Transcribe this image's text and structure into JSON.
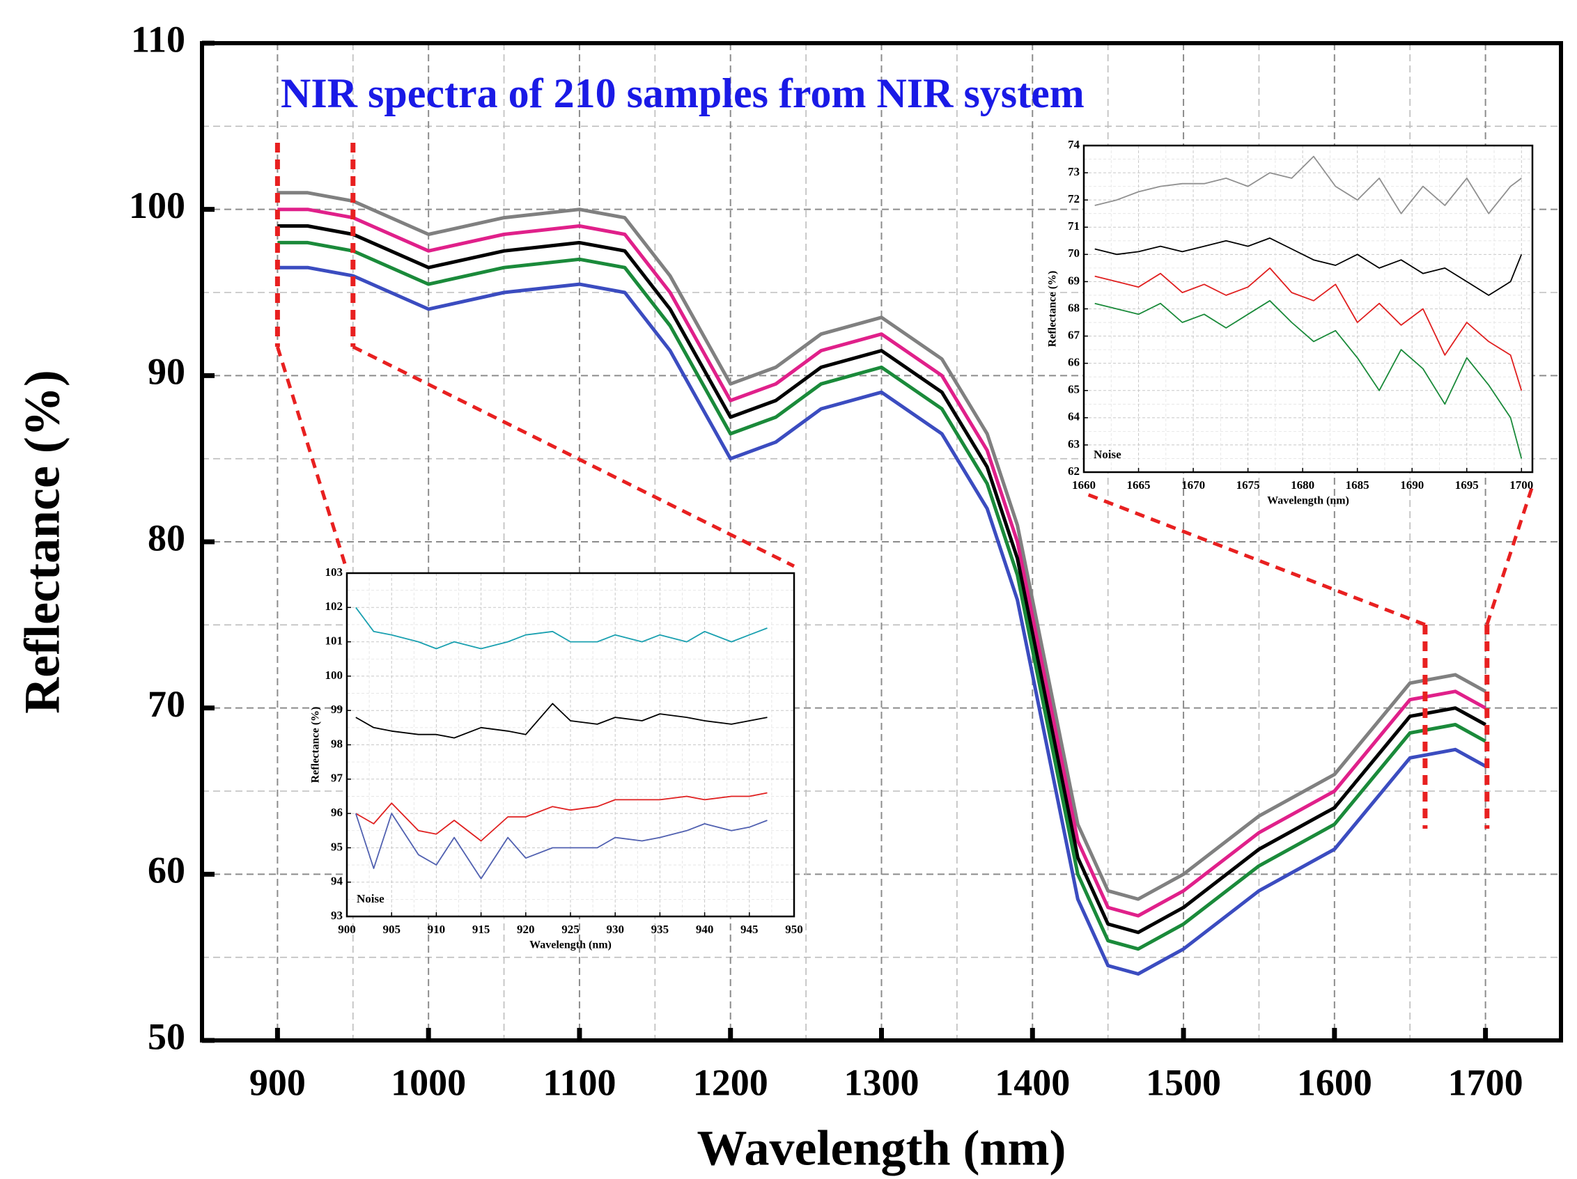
{
  "chart_data": [
    {
      "type": "line",
      "title": "NIR spectra of 210 samples from NIR system",
      "x_label": "Wavelength (nm)",
      "y_label": "Reflectance (%)",
      "xlim": [
        850,
        1750
      ],
      "xticks": [
        900,
        1000,
        1100,
        1200,
        1300,
        1400,
        1500,
        1600,
        1700
      ],
      "ylim": [
        50,
        110
      ],
      "yticks": [
        50,
        60,
        70,
        80,
        90,
        100,
        110
      ],
      "grid": true,
      "x": [
        900,
        920,
        950,
        1000,
        1050,
        1100,
        1130,
        1160,
        1200,
        1230,
        1260,
        1300,
        1340,
        1370,
        1390,
        1410,
        1430,
        1450,
        1470,
        1500,
        1550,
        1600,
        1650,
        1680,
        1700
      ],
      "series": [
        {
          "color": "#808080",
          "values": [
            101,
            101,
            100.5,
            98.5,
            99.5,
            100,
            99.5,
            96,
            89.5,
            90.5,
            92.5,
            93.5,
            91,
            86.5,
            81,
            72,
            63,
            59,
            58.5,
            60,
            63.5,
            66,
            71.5,
            72,
            71
          ]
        },
        {
          "color": "#e0208a",
          "values": [
            100,
            100,
            99.5,
            97.5,
            98.5,
            99,
            98.5,
            95,
            88.5,
            89.5,
            91.5,
            92.5,
            90,
            85.5,
            80,
            71,
            62,
            58,
            57.5,
            59,
            62.5,
            65,
            70.5,
            71,
            70
          ]
        },
        {
          "color": "#000000",
          "values": [
            99,
            99,
            98.5,
            96.5,
            97.5,
            98,
            97.5,
            94,
            87.5,
            88.5,
            90.5,
            91.5,
            89,
            84.5,
            79,
            70,
            61,
            57,
            56.5,
            58,
            61.5,
            64,
            69.5,
            70,
            69
          ]
        },
        {
          "color": "#1a8a3a",
          "values": [
            98,
            98,
            97.5,
            95.5,
            96.5,
            97,
            96.5,
            93,
            86.5,
            87.5,
            89.5,
            90.5,
            88,
            83.5,
            78,
            69,
            60,
            56,
            55.5,
            57,
            60.5,
            63,
            68.5,
            69,
            68
          ]
        },
        {
          "color": "#3b4cc0",
          "values": [
            96.5,
            96.5,
            96,
            94,
            95,
            95.5,
            95,
            91.5,
            85,
            86,
            88,
            89,
            86.5,
            82,
            76.5,
            67.5,
            58.5,
            54.5,
            54,
            55.5,
            59,
            61.5,
            67,
            67.5,
            66.5
          ]
        }
      ]
    },
    {
      "type": "line",
      "x_label": "Wavelength (nm)",
      "y_label": "Reflectance (%)",
      "annotation": "Noise",
      "xlim": [
        900,
        950
      ],
      "xticks": [
        900,
        905,
        910,
        915,
        920,
        925,
        930,
        935,
        940,
        945,
        950
      ],
      "ylim": [
        93,
        103
      ],
      "yticks": [
        93,
        94,
        95,
        96,
        97,
        98,
        99,
        100,
        101,
        102,
        103
      ],
      "grid": true,
      "x": [
        901,
        903,
        905,
        908,
        910,
        912,
        915,
        918,
        920,
        923,
        925,
        928,
        930,
        933,
        935,
        938,
        940,
        943,
        945,
        947
      ],
      "series": [
        {
          "color": "#1aa0b0",
          "values": [
            102,
            101.3,
            101.2,
            101,
            100.8,
            101,
            100.8,
            101,
            101.2,
            101.3,
            101,
            101,
            101.2,
            101,
            101.2,
            101,
            101.3,
            101,
            101.2,
            101.4
          ]
        },
        {
          "color": "#000000",
          "values": [
            98.8,
            98.5,
            98.4,
            98.3,
            98.3,
            98.2,
            98.5,
            98.4,
            98.3,
            99.2,
            98.7,
            98.6,
            98.8,
            98.7,
            98.9,
            98.8,
            98.7,
            98.6,
            98.7,
            98.8
          ]
        },
        {
          "color": "#e02020",
          "values": [
            96,
            95.7,
            96.3,
            95.5,
            95.4,
            95.8,
            95.2,
            95.9,
            95.9,
            96.2,
            96.1,
            96.2,
            96.4,
            96.4,
            96.4,
            96.5,
            96.4,
            96.5,
            96.5,
            96.6
          ]
        },
        {
          "color": "#5060b0",
          "values": [
            96,
            94.4,
            96,
            94.8,
            94.5,
            95.3,
            94.1,
            95.3,
            94.7,
            95,
            95,
            95,
            95.3,
            95.2,
            95.3,
            95.5,
            95.7,
            95.5,
            95.6,
            95.8
          ]
        }
      ]
    },
    {
      "type": "line",
      "x_label": "Wavelength (nm)",
      "y_label": "Reflectance (%)",
      "annotation": "Noise",
      "xlim": [
        1660,
        1701
      ],
      "xticks": [
        1660,
        1665,
        1670,
        1675,
        1680,
        1685,
        1690,
        1695,
        1700
      ],
      "ylim": [
        62,
        74
      ],
      "yticks": [
        62,
        63,
        64,
        65,
        66,
        67,
        68,
        69,
        70,
        71,
        72,
        73,
        74
      ],
      "grid": true,
      "x": [
        1661,
        1663,
        1665,
        1667,
        1669,
        1671,
        1673,
        1675,
        1677,
        1679,
        1681,
        1683,
        1685,
        1687,
        1689,
        1691,
        1693,
        1695,
        1697,
        1699,
        1700
      ],
      "series": [
        {
          "color": "#909090",
          "values": [
            71.8,
            72,
            72.3,
            72.5,
            72.6,
            72.6,
            72.8,
            72.5,
            73,
            72.8,
            73.6,
            72.5,
            72,
            72.8,
            71.5,
            72.5,
            71.8,
            72.8,
            71.5,
            72.5,
            72.8
          ]
        },
        {
          "color": "#000000",
          "values": [
            70.2,
            70,
            70.1,
            70.3,
            70.1,
            70.3,
            70.5,
            70.3,
            70.6,
            70.2,
            69.8,
            69.6,
            70,
            69.5,
            69.8,
            69.3,
            69.5,
            69,
            68.5,
            69,
            70
          ]
        },
        {
          "color": "#1a8a3a",
          "values": [
            68.2,
            68,
            67.8,
            68.2,
            67.5,
            67.8,
            67.3,
            67.8,
            68.3,
            67.5,
            66.8,
            67.2,
            66.2,
            65,
            66.5,
            65.8,
            64.5,
            66.2,
            65.2,
            64,
            62.5
          ]
        },
        {
          "color": "#e02020",
          "values": [
            69.2,
            69,
            68.8,
            69.3,
            68.6,
            68.9,
            68.5,
            68.8,
            69.5,
            68.6,
            68.3,
            68.9,
            67.5,
            68.2,
            67.4,
            68,
            66.3,
            67.5,
            66.8,
            66.3,
            65
          ]
        }
      ]
    }
  ]
}
